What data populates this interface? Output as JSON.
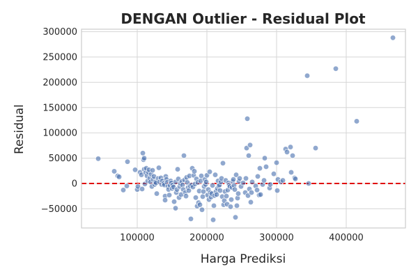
{
  "chart_data": {
    "type": "scatter",
    "title": "DENGAN Outlier - Residual Plot",
    "xlabel": "Harga Prediksi",
    "ylabel": "Residual",
    "xlim": [
      20000,
      485000
    ],
    "ylim": [
      -88000,
      305000
    ],
    "x_ticks": [
      100000,
      200000,
      300000,
      400000
    ],
    "x_tick_labels": [
      "100000",
      "200000",
      "300000",
      "400000"
    ],
    "y_ticks": [
      -50000,
      0,
      50000,
      100000,
      150000,
      200000,
      250000,
      300000
    ],
    "y_tick_labels": [
      "−50000",
      "0",
      "50000",
      "100000",
      "150000",
      "200000",
      "250000",
      "300000"
    ],
    "grid": true,
    "reference_line": {
      "y": 0,
      "color": "#e00000",
      "style": "dashed"
    },
    "point_color": "#4c72b0",
    "points": [
      [
        44000,
        49000
      ],
      [
        67000,
        24000
      ],
      [
        72000,
        15000
      ],
      [
        74000,
        13000
      ],
      [
        80000,
        -13000
      ],
      [
        85000,
        -5000
      ],
      [
        86000,
        43000
      ],
      [
        97000,
        27000
      ],
      [
        100000,
        -12000
      ],
      [
        101000,
        -6000
      ],
      [
        104000,
        22000
      ],
      [
        106000,
        17000
      ],
      [
        107000,
        -11000
      ],
      [
        108000,
        60000
      ],
      [
        109000,
        47000
      ],
      [
        110000,
        28000
      ],
      [
        110000,
        50000
      ],
      [
        111000,
        -1000
      ],
      [
        112000,
        21000
      ],
      [
        113000,
        30000
      ],
      [
        114000,
        15000
      ],
      [
        115000,
        5000
      ],
      [
        116000,
        22000
      ],
      [
        117000,
        27000
      ],
      [
        118000,
        10000
      ],
      [
        119000,
        3000
      ],
      [
        120000,
        18000
      ],
      [
        121000,
        -6000
      ],
      [
        122000,
        26000
      ],
      [
        123000,
        8000
      ],
      [
        124000,
        14000
      ],
      [
        125000,
        -2000
      ],
      [
        126000,
        3000
      ],
      [
        127000,
        1000
      ],
      [
        128000,
        -20000
      ],
      [
        130000,
        10000
      ],
      [
        131000,
        31000
      ],
      [
        132000,
        3000
      ],
      [
        134000,
        11000
      ],
      [
        135000,
        -2000
      ],
      [
        136000,
        5000
      ],
      [
        138000,
        0
      ],
      [
        139000,
        -3000
      ],
      [
        140000,
        -25000
      ],
      [
        140000,
        -33000
      ],
      [
        141000,
        14000
      ],
      [
        142000,
        8000
      ],
      [
        143000,
        2000
      ],
      [
        144000,
        -6000
      ],
      [
        145000,
        -12000
      ],
      [
        146000,
        -23000
      ],
      [
        147000,
        -4000
      ],
      [
        148000,
        5000
      ],
      [
        149000,
        1000
      ],
      [
        150000,
        -10000
      ],
      [
        151000,
        -3000
      ],
      [
        152000,
        -7000
      ],
      [
        153000,
        -36000
      ],
      [
        155000,
        -49000
      ],
      [
        155000,
        3000
      ],
      [
        156000,
        -18000
      ],
      [
        157000,
        -12000
      ],
      [
        158000,
        28000
      ],
      [
        159000,
        9000
      ],
      [
        160000,
        -28000
      ],
      [
        161000,
        -6000
      ],
      [
        162000,
        0
      ],
      [
        163000,
        -22000
      ],
      [
        164000,
        4000
      ],
      [
        165000,
        -3000
      ],
      [
        166000,
        -12000
      ],
      [
        167000,
        55000
      ],
      [
        168000,
        7000
      ],
      [
        169000,
        -18000
      ],
      [
        170000,
        -25000
      ],
      [
        171000,
        12000
      ],
      [
        172000,
        2000
      ],
      [
        173000,
        -8000
      ],
      [
        174000,
        -14000
      ],
      [
        175000,
        15000
      ],
      [
        176000,
        -5000
      ],
      [
        177000,
        -70000
      ],
      [
        178000,
        -3000
      ],
      [
        179000,
        30000
      ],
      [
        180000,
        -7000
      ],
      [
        181000,
        16000
      ],
      [
        182000,
        24000
      ],
      [
        183000,
        -1000
      ],
      [
        184000,
        -28000
      ],
      [
        185000,
        9000
      ],
      [
        186000,
        -45000
      ],
      [
        187000,
        2000
      ],
      [
        188000,
        -38000
      ],
      [
        189000,
        -15000
      ],
      [
        190000,
        -42000
      ],
      [
        191000,
        5000
      ],
      [
        192000,
        15000
      ],
      [
        193000,
        -52000
      ],
      [
        194000,
        -26000
      ],
      [
        195000,
        -16000
      ],
      [
        196000,
        -6000
      ],
      [
        197000,
        8000
      ],
      [
        198000,
        -2000
      ],
      [
        199000,
        3000
      ],
      [
        200000,
        16000
      ],
      [
        201000,
        -23000
      ],
      [
        202000,
        -12000
      ],
      [
        203000,
        -32000
      ],
      [
        204000,
        23000
      ],
      [
        205000,
        -18000
      ],
      [
        206000,
        -27000
      ],
      [
        207000,
        -20000
      ],
      [
        208000,
        -4000
      ],
      [
        209000,
        -72000
      ],
      [
        210000,
        -44000
      ],
      [
        211000,
        -24000
      ],
      [
        212000,
        17000
      ],
      [
        213000,
        -16000
      ],
      [
        214000,
        -22000
      ],
      [
        215000,
        -10000
      ],
      [
        216000,
        5000
      ],
      [
        217000,
        -5000
      ],
      [
        218000,
        -3000
      ],
      [
        219000,
        -14000
      ],
      [
        220000,
        3000
      ],
      [
        221000,
        10000
      ],
      [
        222000,
        -26000
      ],
      [
        223000,
        40000
      ],
      [
        224000,
        -42000
      ],
      [
        225000,
        -34000
      ],
      [
        226000,
        -16000
      ],
      [
        227000,
        6000
      ],
      [
        228000,
        -25000
      ],
      [
        229000,
        -41000
      ],
      [
        230000,
        -13000
      ],
      [
        231000,
        1000
      ],
      [
        232000,
        -3000
      ],
      [
        233000,
        -6000
      ],
      [
        234000,
        -46000
      ],
      [
        235000,
        -32000
      ],
      [
        236000,
        -8000
      ],
      [
        237000,
        4000
      ],
      [
        238000,
        8000
      ],
      [
        239000,
        -4000
      ],
      [
        240000,
        -12000
      ],
      [
        241000,
        -67000
      ],
      [
        242000,
        17000
      ],
      [
        243000,
        -44000
      ],
      [
        244000,
        -29000
      ],
      [
        245000,
        -20000
      ],
      [
        246000,
        4000
      ],
      [
        247000,
        10000
      ],
      [
        249000,
        -6000
      ],
      [
        252000,
        1000
      ],
      [
        255000,
        -18000
      ],
      [
        256000,
        10000
      ],
      [
        257000,
        70000
      ],
      [
        258000,
        128000
      ],
      [
        259000,
        -24000
      ],
      [
        260000,
        55000
      ],
      [
        261000,
        -11000
      ],
      [
        262000,
        76000
      ],
      [
        263000,
        -37000
      ],
      [
        264000,
        -18000
      ],
      [
        265000,
        3000
      ],
      [
        270000,
        -5000
      ],
      [
        272000,
        -13000
      ],
      [
        273000,
        14000
      ],
      [
        275000,
        -23000
      ],
      [
        276000,
        30000
      ],
      [
        277000,
        -22000
      ],
      [
        280000,
        -2000
      ],
      [
        282000,
        6000
      ],
      [
        283000,
        50000
      ],
      [
        285000,
        33000
      ],
      [
        290000,
        -9000
      ],
      [
        291000,
        -2000
      ],
      [
        296000,
        19000
      ],
      [
        300000,
        41000
      ],
      [
        301000,
        -14000
      ],
      [
        302000,
        8000
      ],
      [
        306000,
        3000
      ],
      [
        309000,
        6000
      ],
      [
        313000,
        68000
      ],
      [
        315000,
        62000
      ],
      [
        320000,
        72000
      ],
      [
        321000,
        22000
      ],
      [
        323000,
        55000
      ],
      [
        326000,
        11000
      ],
      [
        327000,
        9000
      ],
      [
        344000,
        213000
      ],
      [
        346000,
        0
      ],
      [
        356000,
        70000
      ],
      [
        385000,
        227000
      ],
      [
        415000,
        123000
      ],
      [
        467000,
        288000
      ]
    ]
  }
}
